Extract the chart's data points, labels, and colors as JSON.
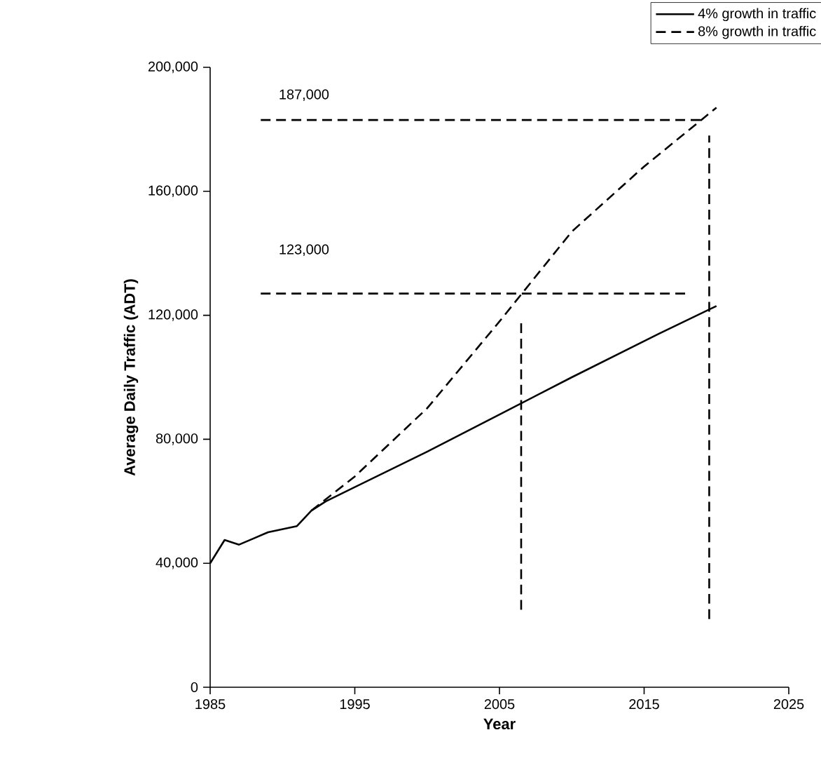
{
  "chart_data": {
    "type": "line",
    "xlabel": "Year",
    "ylabel": "Average Daily Traffic (ADT)",
    "xlim": [
      1985,
      2025
    ],
    "xticks": [
      1985,
      1995,
      2005,
      2015,
      2025
    ],
    "ylim": [
      0,
      200000
    ],
    "yticks": [
      {
        "value": 0,
        "label": "0"
      },
      {
        "value": 40000,
        "label": "40,000"
      },
      {
        "value": 80000,
        "label": "80,000"
      },
      {
        "value": 120000,
        "label": "120,000"
      },
      {
        "value": 160000,
        "label": "160,000"
      },
      {
        "value": 200000,
        "label": "200,000"
      }
    ],
    "legend": "top right",
    "annotations": [
      "187,000",
      "123,000"
    ],
    "series": [
      {
        "name": "4% growth in traffic",
        "color": "#000000",
        "line_style": "solid",
        "x": [
          1985,
          1986,
          1987,
          1988,
          1989,
          1990,
          1991,
          1992,
          1993,
          2000,
          2005,
          2010,
          2016,
          2020
        ],
        "values": [
          40000,
          47500,
          46000,
          48000,
          50000,
          51000,
          52000,
          57000,
          60000,
          76000,
          88000,
          100000,
          114000,
          123000
        ]
      },
      {
        "name": "8% growth in traffic",
        "color": "#000000",
        "line_style": "dashed",
        "x": [
          1992,
          1995,
          2000,
          2005,
          2010,
          2015,
          2020
        ],
        "values": [
          57000,
          68000,
          90000,
          118000,
          147000,
          168000,
          187000
        ]
      },
      {
        "color": "#000000",
        "line_style": "dashed",
        "x": [
          1988.5,
          2019
        ],
        "values": [
          183000,
          183000
        ]
      },
      {
        "color": "#000000",
        "line_style": "dashed",
        "x": [
          1988.5,
          2018
        ],
        "values": [
          127000,
          127000
        ]
      },
      {
        "color": "#000000",
        "line_style": "dashed",
        "x": [
          2006.5,
          2006.5
        ],
        "values": [
          25000,
          118000
        ]
      },
      {
        "color": "#000000",
        "line_style": "dashed",
        "x": [
          2019.5,
          2019.5
        ],
        "values": [
          22000,
          178000
        ]
      }
    ]
  }
}
